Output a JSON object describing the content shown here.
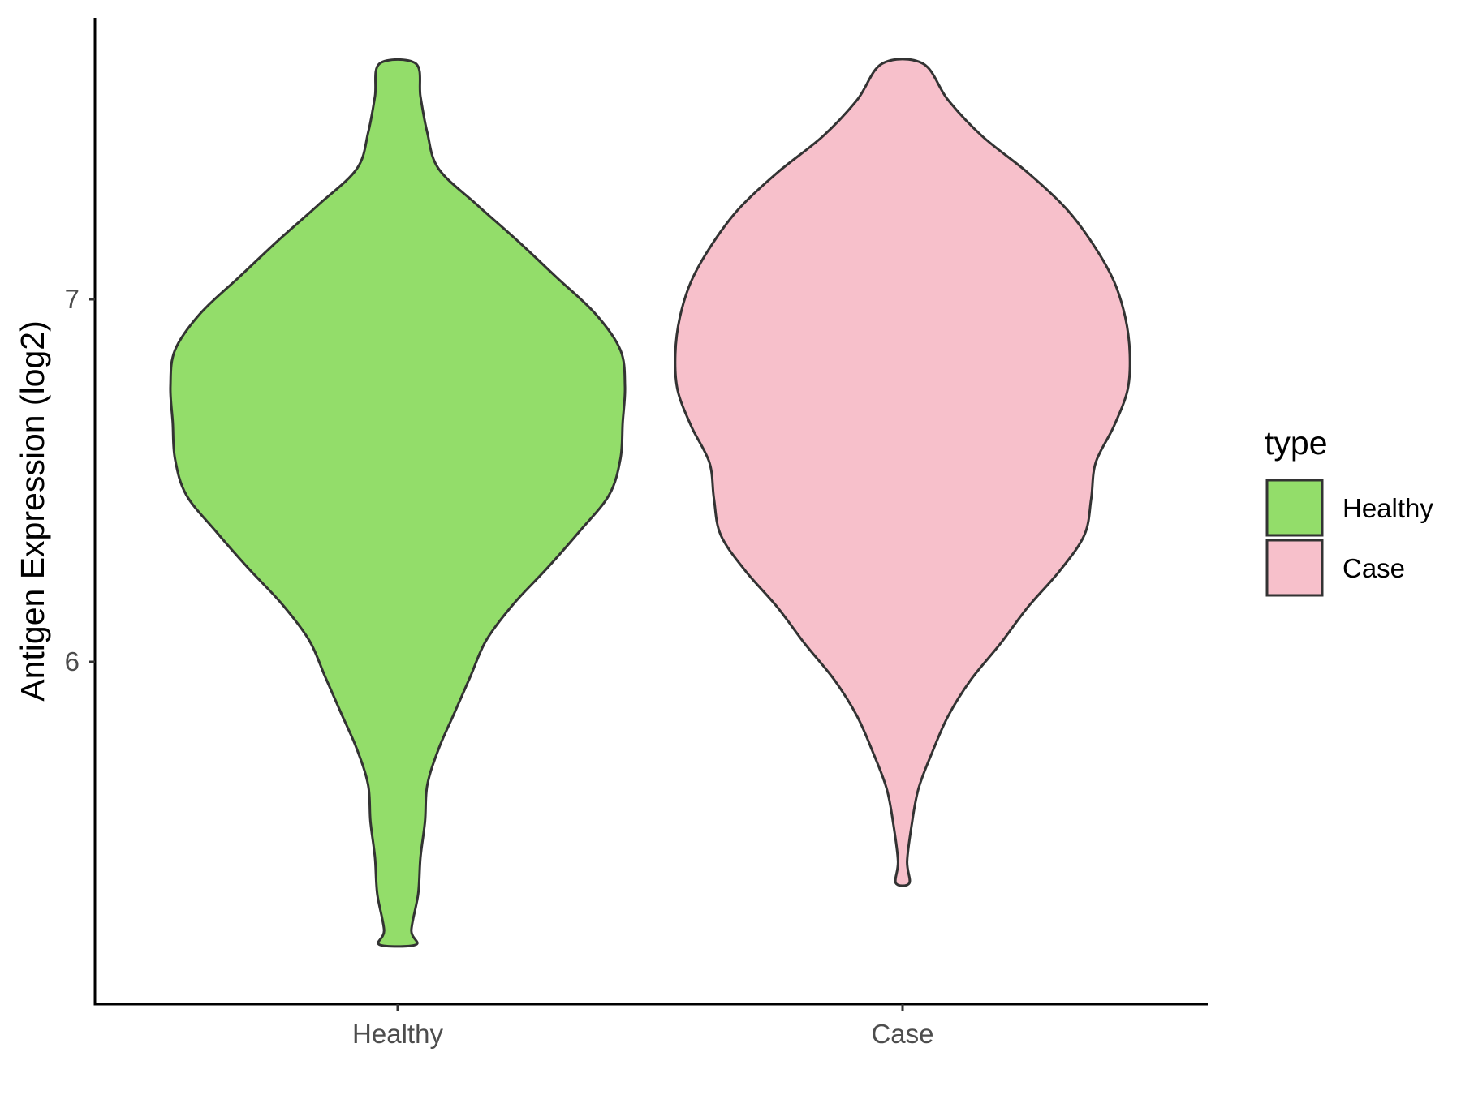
{
  "chart_data": {
    "type": "violin",
    "title": "",
    "xlabel": "",
    "ylabel": "Antigen Expression (log2)",
    "categories": [
      "Healthy",
      "Case"
    ],
    "y_ticks": [
      6,
      7
    ],
    "ylim": [
      5.06,
      7.76
    ],
    "grid": false,
    "legend": {
      "title": "type",
      "position": "right",
      "entries": [
        "Healthy",
        "Case"
      ]
    },
    "series": [
      {
        "name": "Healthy",
        "color": "#93DD6A",
        "min": 5.22,
        "max": 7.65,
        "density_profile": [
          [
            7.65,
            0.08
          ],
          [
            7.56,
            0.1
          ],
          [
            7.46,
            0.13
          ],
          [
            7.36,
            0.18
          ],
          [
            7.26,
            0.35
          ],
          [
            7.16,
            0.53
          ],
          [
            7.06,
            0.7
          ],
          [
            6.96,
            0.87
          ],
          [
            6.86,
            0.98
          ],
          [
            6.76,
            1.0
          ],
          [
            6.66,
            0.99
          ],
          [
            6.56,
            0.98
          ],
          [
            6.46,
            0.93
          ],
          [
            6.36,
            0.8
          ],
          [
            6.26,
            0.66
          ],
          [
            6.16,
            0.51
          ],
          [
            6.06,
            0.39
          ],
          [
            5.96,
            0.32
          ],
          [
            5.86,
            0.25
          ],
          [
            5.76,
            0.18
          ],
          [
            5.66,
            0.13
          ],
          [
            5.56,
            0.12
          ],
          [
            5.46,
            0.1
          ],
          [
            5.36,
            0.09
          ],
          [
            5.26,
            0.06
          ],
          [
            5.22,
            0.08
          ]
        ]
      },
      {
        "name": "Case",
        "color": "#F7C0CB",
        "min": 5.39,
        "max": 7.65,
        "density_profile": [
          [
            7.65,
            0.09
          ],
          [
            7.55,
            0.2
          ],
          [
            7.45,
            0.35
          ],
          [
            7.35,
            0.55
          ],
          [
            7.25,
            0.72
          ],
          [
            7.15,
            0.84
          ],
          [
            7.05,
            0.93
          ],
          [
            6.95,
            0.98
          ],
          [
            6.85,
            1.0
          ],
          [
            6.75,
            0.99
          ],
          [
            6.65,
            0.93
          ],
          [
            6.55,
            0.85
          ],
          [
            6.45,
            0.83
          ],
          [
            6.35,
            0.8
          ],
          [
            6.25,
            0.69
          ],
          [
            6.15,
            0.55
          ],
          [
            6.05,
            0.43
          ],
          [
            5.95,
            0.3
          ],
          [
            5.85,
            0.2
          ],
          [
            5.75,
            0.13
          ],
          [
            5.65,
            0.07
          ],
          [
            5.55,
            0.04
          ],
          [
            5.45,
            0.02
          ],
          [
            5.39,
            0.03
          ]
        ]
      }
    ]
  }
}
